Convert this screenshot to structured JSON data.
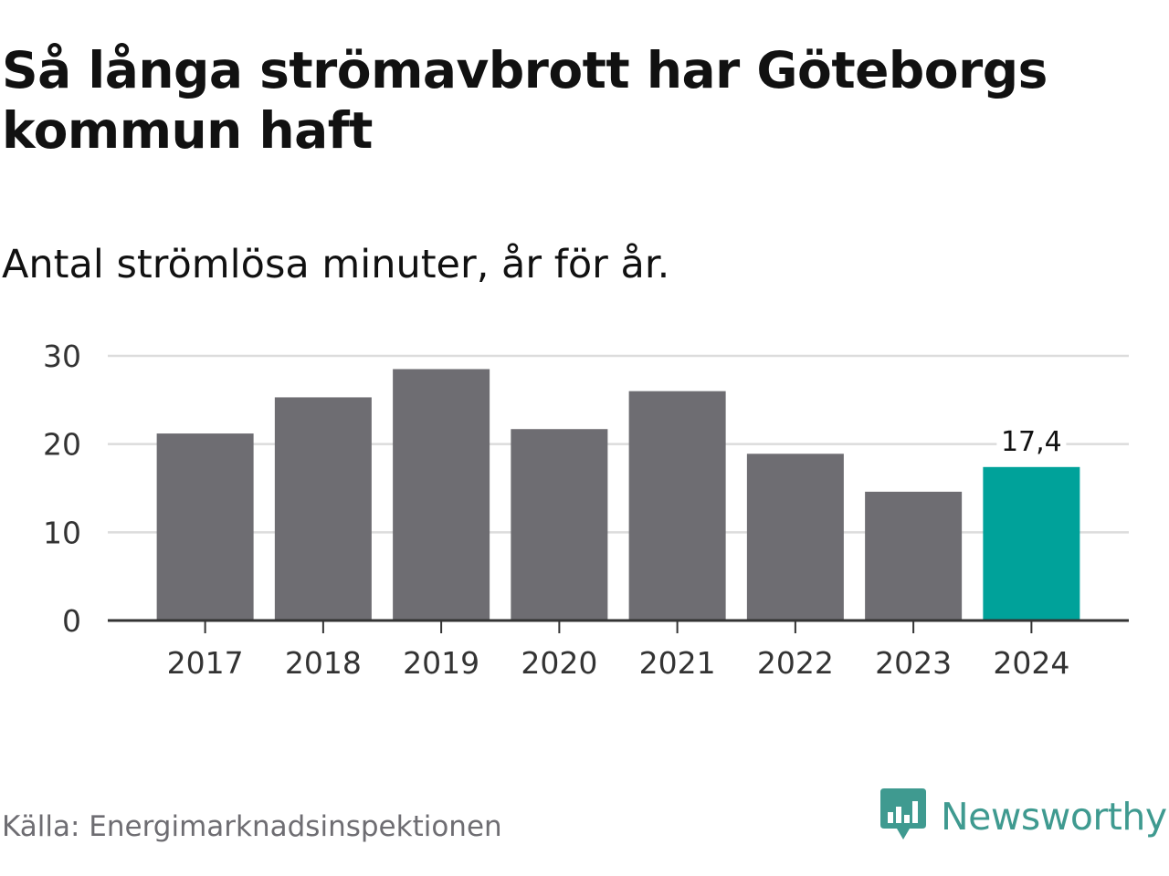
{
  "title": "Så långa strömavbrott har Göteborgs kommun haft",
  "subtitle": "Antal strömlösa minuter, år för år.",
  "source": "Källa: Energimarknadsinspektionen",
  "brand": {
    "name": "Newsworthy",
    "logo_icon": "newsworthy-logo-icon",
    "color": "#3f9a90"
  },
  "colors": {
    "bar_default": "#6e6d72",
    "bar_highlight": "#00a29a",
    "grid": "#dcdcdc",
    "axis": "#333333",
    "tick_text": "#333333"
  },
  "chart_data": {
    "type": "bar",
    "categories": [
      "2017",
      "2018",
      "2019",
      "2020",
      "2021",
      "2022",
      "2023",
      "2024"
    ],
    "values": [
      21.2,
      25.3,
      28.5,
      21.7,
      26.0,
      18.9,
      14.6,
      17.4
    ],
    "highlight_index": 7,
    "annotation": {
      "index": 7,
      "text": "17,4"
    },
    "ylim": [
      0,
      30
    ],
    "yticks": [
      0,
      10,
      20,
      30
    ],
    "ytick_labels": [
      "0",
      "10",
      "20",
      "30"
    ],
    "xlabel": "",
    "ylabel": "",
    "grid": true
  }
}
